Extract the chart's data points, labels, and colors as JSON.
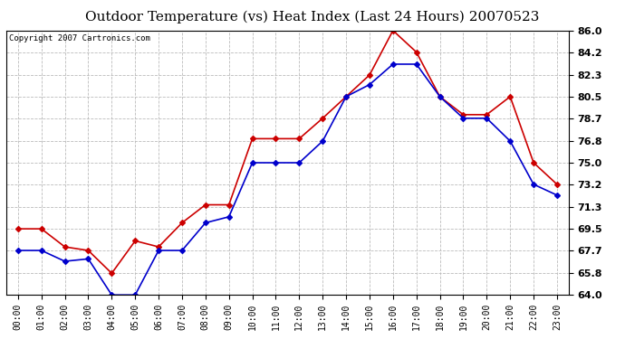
{
  "title": "Outdoor Temperature (vs) Heat Index (Last 24 Hours) 20070523",
  "copyright": "Copyright 2007 Cartronics.com",
  "hours": [
    "00:00",
    "01:00",
    "02:00",
    "03:00",
    "04:00",
    "05:00",
    "06:00",
    "07:00",
    "08:00",
    "09:00",
    "10:00",
    "11:00",
    "12:00",
    "13:00",
    "14:00",
    "15:00",
    "16:00",
    "17:00",
    "18:00",
    "19:00",
    "20:00",
    "21:00",
    "22:00",
    "23:00"
  ],
  "red_data": [
    69.5,
    69.5,
    68.0,
    67.7,
    65.8,
    68.5,
    68.0,
    70.0,
    71.5,
    71.5,
    77.0,
    77.0,
    77.0,
    78.7,
    80.5,
    82.3,
    86.0,
    84.2,
    80.5,
    79.0,
    79.0,
    80.5,
    75.0,
    73.2
  ],
  "blue_data": [
    67.7,
    67.7,
    66.8,
    67.0,
    64.0,
    64.0,
    67.7,
    67.7,
    70.0,
    70.5,
    75.0,
    75.0,
    75.0,
    76.8,
    80.5,
    81.5,
    83.2,
    83.2,
    80.5,
    78.7,
    78.7,
    76.8,
    73.2,
    72.3
  ],
  "red_color": "#cc0000",
  "blue_color": "#0000cc",
  "ylim": [
    64.0,
    86.0
  ],
  "yticks": [
    64.0,
    65.8,
    67.7,
    69.5,
    71.3,
    73.2,
    75.0,
    76.8,
    78.7,
    80.5,
    82.3,
    84.2,
    86.0
  ],
  "bg_color": "#ffffff",
  "plot_bg_color": "#ffffff",
  "grid_color": "#bbbbbb",
  "title_fontsize": 11,
  "copyright_fontsize": 6.5,
  "tick_fontsize": 7,
  "ytick_fontsize": 8,
  "marker": "D",
  "marker_size": 3,
  "linewidth": 1.2
}
